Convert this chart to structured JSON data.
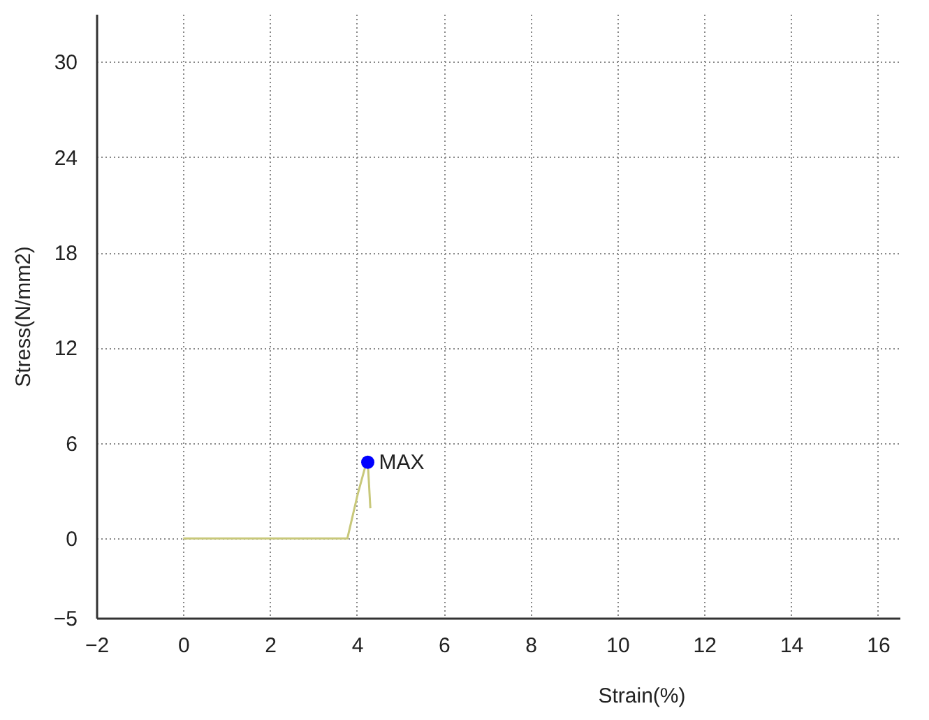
{
  "chart_data": {
    "type": "line",
    "xlabel": "Strain(%)",
    "ylabel": "Stress(N/mm2)",
    "xlim": [
      -2,
      16.5
    ],
    "xticks": [
      -2,
      0,
      2,
      4,
      6,
      8,
      10,
      12,
      14,
      16
    ],
    "ylim": [
      -5,
      33
    ],
    "yticks": [
      -5,
      0,
      6,
      12,
      18,
      24,
      30
    ],
    "grid": true,
    "marker": "none",
    "line_style": "solid",
    "series": [
      {
        "color": "#c8c87a",
        "x": [
          0,
          1,
          2,
          3,
          3.78,
          4.02,
          4.18,
          4.25,
          4.31
        ],
        "values": [
          0,
          0,
          0,
          0,
          0,
          2.8,
          4.4,
          4.8,
          1.9
        ]
      },
      {
        "type": "scatter",
        "color": "#0000ff",
        "marker": "circle",
        "x": [
          4.25
        ],
        "values": [
          4.8
        ]
      }
    ],
    "annotations": [
      {
        "text": "MAX",
        "x": 4.25,
        "y": 4.8
      }
    ]
  }
}
